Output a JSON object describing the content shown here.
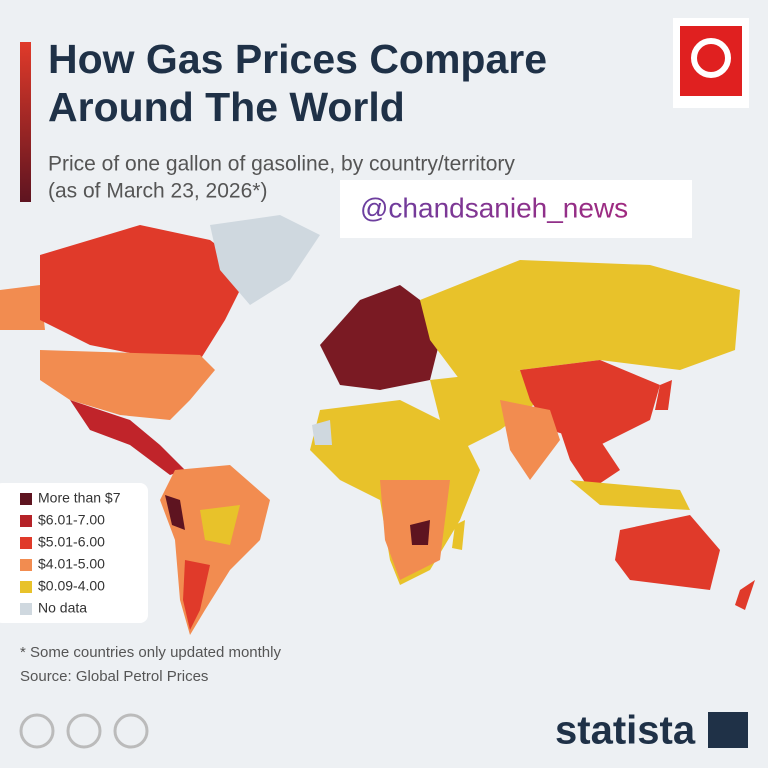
{
  "header": {
    "title_lines": [
      "How Gas Prices Compare",
      "Around The World"
    ],
    "subtitle_lines": [
      "Price of one gallon of gasoline, by country/territory",
      "(as of March 23, 2026*)"
    ]
  },
  "watermark": "@chandsanieh_news",
  "legend": [
    {
      "label": "More than $7",
      "color": "#5e1420"
    },
    {
      "label": "$6.01-7.00",
      "color": "#b52228"
    },
    {
      "label": "$5.01-6.00",
      "color": "#e03a2a"
    },
    {
      "label": "$4.01-5.00",
      "color": "#f28c50"
    },
    {
      "label": "$0.09-4.00",
      "color": "#e8c22a"
    },
    {
      "label": "No data",
      "color": "#cfd8df"
    }
  ],
  "footnote": "* Some countries only updated monthly",
  "source": "Source: Global Petrol Prices",
  "brand": "statista"
}
